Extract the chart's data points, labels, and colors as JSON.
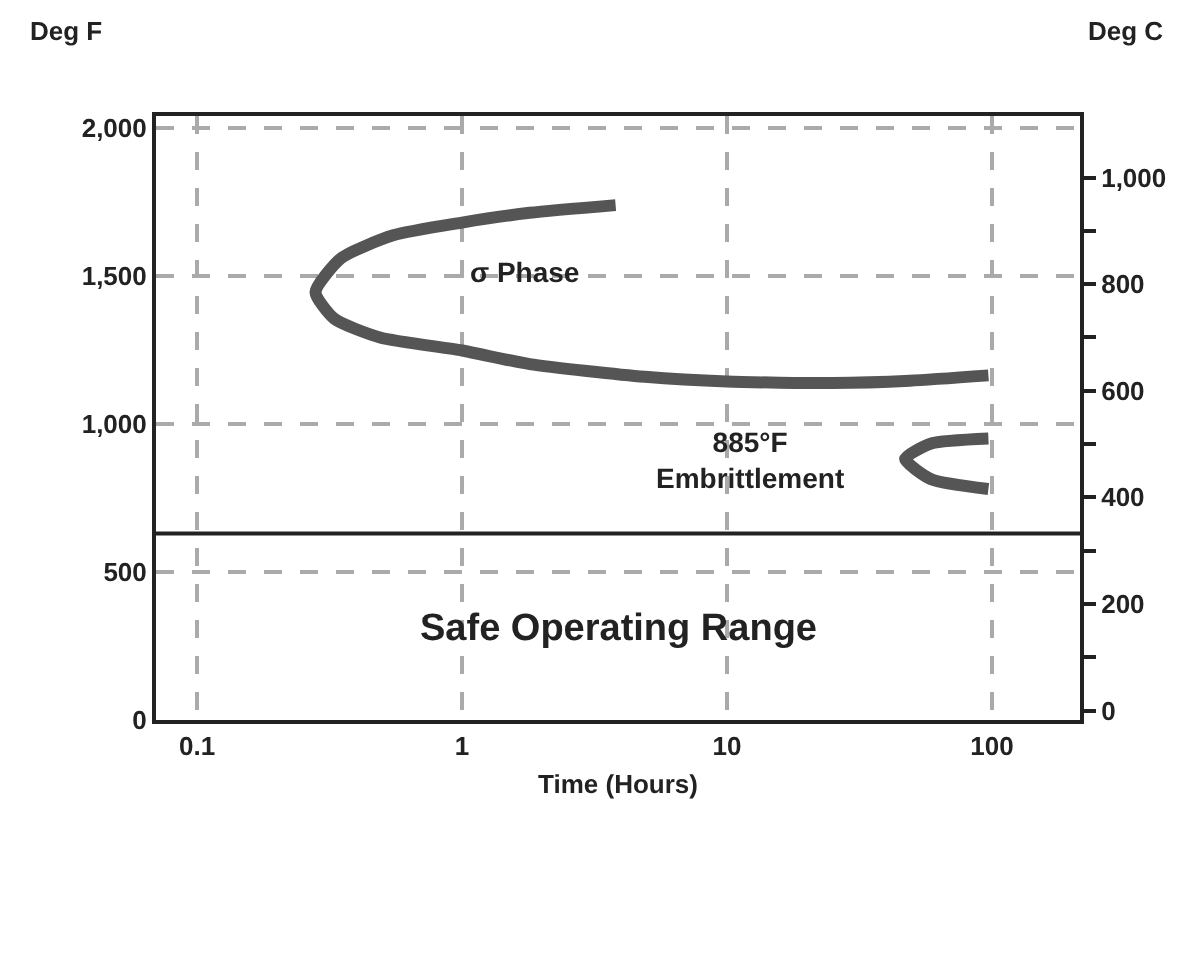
{
  "chart_data": {
    "type": "line",
    "xlabel": "Time (Hours)",
    "ylabel": "Deg F",
    "y2label": "Deg C",
    "log": "x",
    "grid": true,
    "marker": "none",
    "line_style": "solid",
    "xlim": [
      0.07,
      215
    ],
    "xticks": [
      0.1,
      1,
      10,
      100
    ],
    "ylim": [
      0,
      2040
    ],
    "yticks": [
      0,
      500,
      {
        "value": 1000,
        "label": "1,000"
      },
      {
        "value": 1500,
        "label": "1,500"
      },
      {
        "value": 2000,
        "label": "2,000"
      }
    ],
    "y2lim": [
      -17.8,
      1115.6
    ],
    "y2ticks": [
      0,
      {
        "value": 100,
        "label": null
      },
      200,
      {
        "value": 300,
        "label": null
      },
      400,
      {
        "value": 500,
        "label": null
      },
      600,
      {
        "value": 700,
        "label": null
      },
      800,
      {
        "value": 900,
        "label": null
      },
      {
        "value": 1000,
        "label": "1,000"
      }
    ],
    "series": [
      {
        "color": "#555555",
        "x": [
          97,
          49,
          25,
          10,
          4.9,
          1.8,
          1,
          0.49,
          0.33,
          0.28,
          0.35,
          0.55,
          1,
          1.8,
          3.8
        ],
        "values": [
          1164,
          1146,
          1138,
          1143,
          1159,
          1202,
          1248,
          1292,
          1355,
          1445,
          1560,
          1637,
          1680,
          1713,
          1739
        ]
      },
      {
        "color": "#555555",
        "x": [
          97,
          59,
          47,
          59,
          97
        ],
        "values": [
          951,
          934,
          882,
          813,
          780
        ]
      }
    ],
    "ref_lines": [
      {
        "axis": "y",
        "value": 630,
        "color": "#222222"
      }
    ],
    "annotations": [
      "σ Phase",
      "885°F\nEmbrittlement",
      "Safe Operating Range"
    ]
  }
}
